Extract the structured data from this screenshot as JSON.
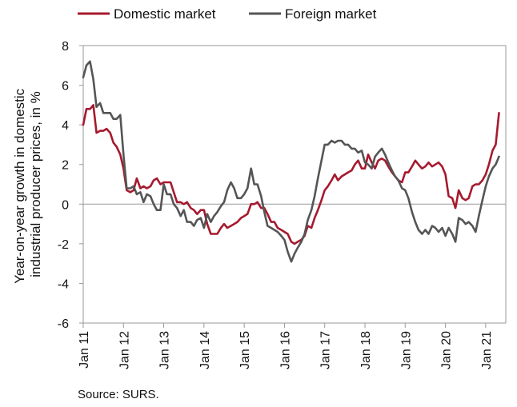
{
  "chart_data": {
    "type": "line",
    "title": "",
    "ylabel_lines": [
      "Year-on-year growth in domestic",
      "industrial producer prices, in %"
    ],
    "xlabel": "",
    "source": "Source: SURS.",
    "ylim": [
      -6,
      8
    ],
    "y_ticks": [
      -6,
      -4,
      -2,
      0,
      2,
      4,
      6,
      8
    ],
    "x_range": [
      2011.0,
      2021.5
    ],
    "x_ticks": [
      "Jan 11",
      "Jan 12",
      "Jan 13",
      "Jan 14",
      "Jan 15",
      "Jan 16",
      "Jan 17",
      "Jan 18",
      "Jan 19",
      "Jan 20",
      "Jan 21"
    ],
    "grid": false,
    "legend_position": "top",
    "series": [
      {
        "name": "Domestic market",
        "color": "#a6192e",
        "points": [
          [
            2011.0,
            4.0
          ],
          [
            2011.08,
            4.8
          ],
          [
            2011.17,
            4.8
          ],
          [
            2011.25,
            5.0
          ],
          [
            2011.33,
            3.6
          ],
          [
            2011.42,
            3.7
          ],
          [
            2011.5,
            3.7
          ],
          [
            2011.58,
            3.8
          ],
          [
            2011.67,
            3.6
          ],
          [
            2011.75,
            3.1
          ],
          [
            2011.83,
            2.9
          ],
          [
            2011.92,
            2.5
          ],
          [
            2012.0,
            1.8
          ],
          [
            2012.08,
            0.7
          ],
          [
            2012.17,
            0.6
          ],
          [
            2012.25,
            0.7
          ],
          [
            2012.33,
            1.3
          ],
          [
            2012.42,
            0.8
          ],
          [
            2012.5,
            0.9
          ],
          [
            2012.58,
            0.8
          ],
          [
            2012.67,
            0.9
          ],
          [
            2012.75,
            1.2
          ],
          [
            2012.83,
            1.3
          ],
          [
            2012.92,
            1.0
          ],
          [
            2013.0,
            1.1
          ],
          [
            2013.08,
            1.1
          ],
          [
            2013.17,
            1.1
          ],
          [
            2013.25,
            0.6
          ],
          [
            2013.33,
            0.1
          ],
          [
            2013.42,
            0.1
          ],
          [
            2013.5,
            0.0
          ],
          [
            2013.58,
            0.1
          ],
          [
            2013.67,
            -0.2
          ],
          [
            2013.75,
            -0.3
          ],
          [
            2013.83,
            -0.5
          ],
          [
            2013.92,
            -0.3
          ],
          [
            2014.0,
            -0.3
          ],
          [
            2014.08,
            -1.0
          ],
          [
            2014.17,
            -1.5
          ],
          [
            2014.25,
            -1.5
          ],
          [
            2014.33,
            -1.5
          ],
          [
            2014.42,
            -1.2
          ],
          [
            2014.5,
            -1.0
          ],
          [
            2014.58,
            -1.2
          ],
          [
            2014.67,
            -1.1
          ],
          [
            2014.75,
            -1.0
          ],
          [
            2014.83,
            -0.9
          ],
          [
            2014.92,
            -0.7
          ],
          [
            2015.0,
            -0.6
          ],
          [
            2015.08,
            -0.5
          ],
          [
            2015.17,
            0.0
          ],
          [
            2015.25,
            0.0
          ],
          [
            2015.33,
            0.1
          ],
          [
            2015.42,
            -0.2
          ],
          [
            2015.5,
            -0.2
          ],
          [
            2015.58,
            -0.5
          ],
          [
            2015.67,
            -0.9
          ],
          [
            2015.75,
            -0.9
          ],
          [
            2015.83,
            -1.2
          ],
          [
            2015.92,
            -1.3
          ],
          [
            2016.0,
            -1.4
          ],
          [
            2016.08,
            -1.5
          ],
          [
            2016.17,
            -1.9
          ],
          [
            2016.25,
            -2.0
          ],
          [
            2016.33,
            -1.9
          ],
          [
            2016.42,
            -1.8
          ],
          [
            2016.5,
            -1.6
          ],
          [
            2016.58,
            -1.1
          ],
          [
            2016.67,
            -1.2
          ],
          [
            2016.75,
            -0.7
          ],
          [
            2016.83,
            -0.3
          ],
          [
            2016.92,
            0.2
          ],
          [
            2017.0,
            0.7
          ],
          [
            2017.08,
            0.9
          ],
          [
            2017.17,
            1.2
          ],
          [
            2017.25,
            1.5
          ],
          [
            2017.33,
            1.2
          ],
          [
            2017.42,
            1.4
          ],
          [
            2017.5,
            1.5
          ],
          [
            2017.58,
            1.6
          ],
          [
            2017.67,
            1.7
          ],
          [
            2017.75,
            2.0
          ],
          [
            2017.83,
            2.2
          ],
          [
            2017.92,
            1.8
          ],
          [
            2018.0,
            1.8
          ],
          [
            2018.08,
            2.5
          ],
          [
            2018.17,
            2.1
          ],
          [
            2018.25,
            1.8
          ],
          [
            2018.33,
            2.2
          ],
          [
            2018.42,
            2.3
          ],
          [
            2018.5,
            2.2
          ],
          [
            2018.58,
            1.9
          ],
          [
            2018.67,
            1.6
          ],
          [
            2018.75,
            1.4
          ],
          [
            2018.83,
            1.2
          ],
          [
            2018.92,
            1.1
          ],
          [
            2019.0,
            1.6
          ],
          [
            2019.08,
            1.6
          ],
          [
            2019.17,
            1.9
          ],
          [
            2019.25,
            2.2
          ],
          [
            2019.33,
            2.0
          ],
          [
            2019.42,
            1.8
          ],
          [
            2019.5,
            1.9
          ],
          [
            2019.58,
            2.1
          ],
          [
            2019.67,
            1.9
          ],
          [
            2019.75,
            2.0
          ],
          [
            2019.83,
            2.1
          ],
          [
            2019.92,
            1.9
          ],
          [
            2020.0,
            1.5
          ],
          [
            2020.08,
            0.4
          ],
          [
            2020.17,
            0.3
          ],
          [
            2020.25,
            -0.2
          ],
          [
            2020.33,
            0.7
          ],
          [
            2020.42,
            0.3
          ],
          [
            2020.5,
            0.2
          ],
          [
            2020.58,
            0.3
          ],
          [
            2020.67,
            0.9
          ],
          [
            2020.75,
            1.0
          ],
          [
            2020.83,
            1.0
          ],
          [
            2020.92,
            1.2
          ],
          [
            2021.0,
            1.5
          ],
          [
            2021.08,
            2.0
          ],
          [
            2021.17,
            2.7
          ],
          [
            2021.25,
            3.0
          ],
          [
            2021.33,
            4.6
          ]
        ]
      },
      {
        "name": "Foreign market",
        "color": "#555555",
        "points": [
          [
            2011.0,
            6.4
          ],
          [
            2011.08,
            7.0
          ],
          [
            2011.17,
            7.2
          ],
          [
            2011.25,
            6.3
          ],
          [
            2011.33,
            4.9
          ],
          [
            2011.42,
            5.1
          ],
          [
            2011.5,
            4.6
          ],
          [
            2011.58,
            4.6
          ],
          [
            2011.67,
            4.6
          ],
          [
            2011.75,
            4.3
          ],
          [
            2011.83,
            4.3
          ],
          [
            2011.92,
            4.5
          ],
          [
            2012.0,
            2.5
          ],
          [
            2012.08,
            0.8
          ],
          [
            2012.17,
            0.8
          ],
          [
            2012.25,
            0.9
          ],
          [
            2012.33,
            0.5
          ],
          [
            2012.42,
            0.6
          ],
          [
            2012.5,
            0.1
          ],
          [
            2012.58,
            0.5
          ],
          [
            2012.67,
            0.4
          ],
          [
            2012.75,
            0.0
          ],
          [
            2012.83,
            -0.3
          ],
          [
            2012.92,
            -0.3
          ],
          [
            2013.0,
            1.0
          ],
          [
            2013.08,
            0.5
          ],
          [
            2013.17,
            0.5
          ],
          [
            2013.25,
            0.0
          ],
          [
            2013.33,
            -0.2
          ],
          [
            2013.42,
            -0.6
          ],
          [
            2013.5,
            -0.3
          ],
          [
            2013.58,
            -0.9
          ],
          [
            2013.67,
            -0.9
          ],
          [
            2013.75,
            -1.1
          ],
          [
            2013.83,
            -0.8
          ],
          [
            2013.92,
            -0.7
          ],
          [
            2014.0,
            -1.2
          ],
          [
            2014.08,
            -0.5
          ],
          [
            2014.17,
            -0.9
          ],
          [
            2014.25,
            -0.6
          ],
          [
            2014.33,
            -0.4
          ],
          [
            2014.42,
            -0.1
          ],
          [
            2014.5,
            0.1
          ],
          [
            2014.58,
            0.7
          ],
          [
            2014.67,
            1.1
          ],
          [
            2014.75,
            0.8
          ],
          [
            2014.83,
            0.3
          ],
          [
            2014.92,
            0.3
          ],
          [
            2015.0,
            0.5
          ],
          [
            2015.08,
            0.8
          ],
          [
            2015.17,
            1.8
          ],
          [
            2015.25,
            1.0
          ],
          [
            2015.33,
            1.0
          ],
          [
            2015.42,
            0.4
          ],
          [
            2015.5,
            -0.4
          ],
          [
            2015.58,
            -1.1
          ],
          [
            2015.67,
            -1.2
          ],
          [
            2015.75,
            -1.3
          ],
          [
            2015.83,
            -1.4
          ],
          [
            2015.92,
            -1.6
          ],
          [
            2016.0,
            -1.8
          ],
          [
            2016.08,
            -2.4
          ],
          [
            2016.17,
            -2.9
          ],
          [
            2016.25,
            -2.5
          ],
          [
            2016.33,
            -2.2
          ],
          [
            2016.42,
            -1.9
          ],
          [
            2016.5,
            -1.5
          ],
          [
            2016.58,
            -0.8
          ],
          [
            2016.67,
            -0.3
          ],
          [
            2016.75,
            0.4
          ],
          [
            2016.83,
            1.3
          ],
          [
            2016.92,
            2.2
          ],
          [
            2017.0,
            3.0
          ],
          [
            2017.08,
            3.0
          ],
          [
            2017.17,
            3.2
          ],
          [
            2017.25,
            3.1
          ],
          [
            2017.33,
            3.2
          ],
          [
            2017.42,
            3.2
          ],
          [
            2017.5,
            3.0
          ],
          [
            2017.58,
            3.0
          ],
          [
            2017.67,
            2.8
          ],
          [
            2017.75,
            2.8
          ],
          [
            2017.83,
            2.6
          ],
          [
            2017.92,
            2.7
          ],
          [
            2018.0,
            2.1
          ],
          [
            2018.08,
            2.0
          ],
          [
            2018.17,
            1.8
          ],
          [
            2018.25,
            2.4
          ],
          [
            2018.33,
            2.6
          ],
          [
            2018.42,
            2.8
          ],
          [
            2018.5,
            2.5
          ],
          [
            2018.58,
            2.1
          ],
          [
            2018.67,
            1.7
          ],
          [
            2018.75,
            1.4
          ],
          [
            2018.83,
            1.2
          ],
          [
            2018.92,
            0.8
          ],
          [
            2019.0,
            0.7
          ],
          [
            2019.08,
            0.3
          ],
          [
            2019.17,
            -0.4
          ],
          [
            2019.25,
            -0.9
          ],
          [
            2019.33,
            -1.3
          ],
          [
            2019.42,
            -1.5
          ],
          [
            2019.5,
            -1.3
          ],
          [
            2019.58,
            -1.5
          ],
          [
            2019.67,
            -1.1
          ],
          [
            2019.75,
            -1.2
          ],
          [
            2019.83,
            -1.4
          ],
          [
            2019.92,
            -1.2
          ],
          [
            2020.0,
            -1.6
          ],
          [
            2020.08,
            -1.2
          ],
          [
            2020.17,
            -1.5
          ],
          [
            2020.25,
            -1.9
          ],
          [
            2020.33,
            -0.7
          ],
          [
            2020.42,
            -0.8
          ],
          [
            2020.5,
            -1.0
          ],
          [
            2020.58,
            -0.9
          ],
          [
            2020.67,
            -1.1
          ],
          [
            2020.75,
            -1.4
          ],
          [
            2020.83,
            -0.6
          ],
          [
            2020.92,
            0.2
          ],
          [
            2021.0,
            0.9
          ],
          [
            2021.08,
            1.4
          ],
          [
            2021.17,
            1.8
          ],
          [
            2021.25,
            2.0
          ],
          [
            2021.33,
            2.4
          ]
        ]
      }
    ]
  }
}
